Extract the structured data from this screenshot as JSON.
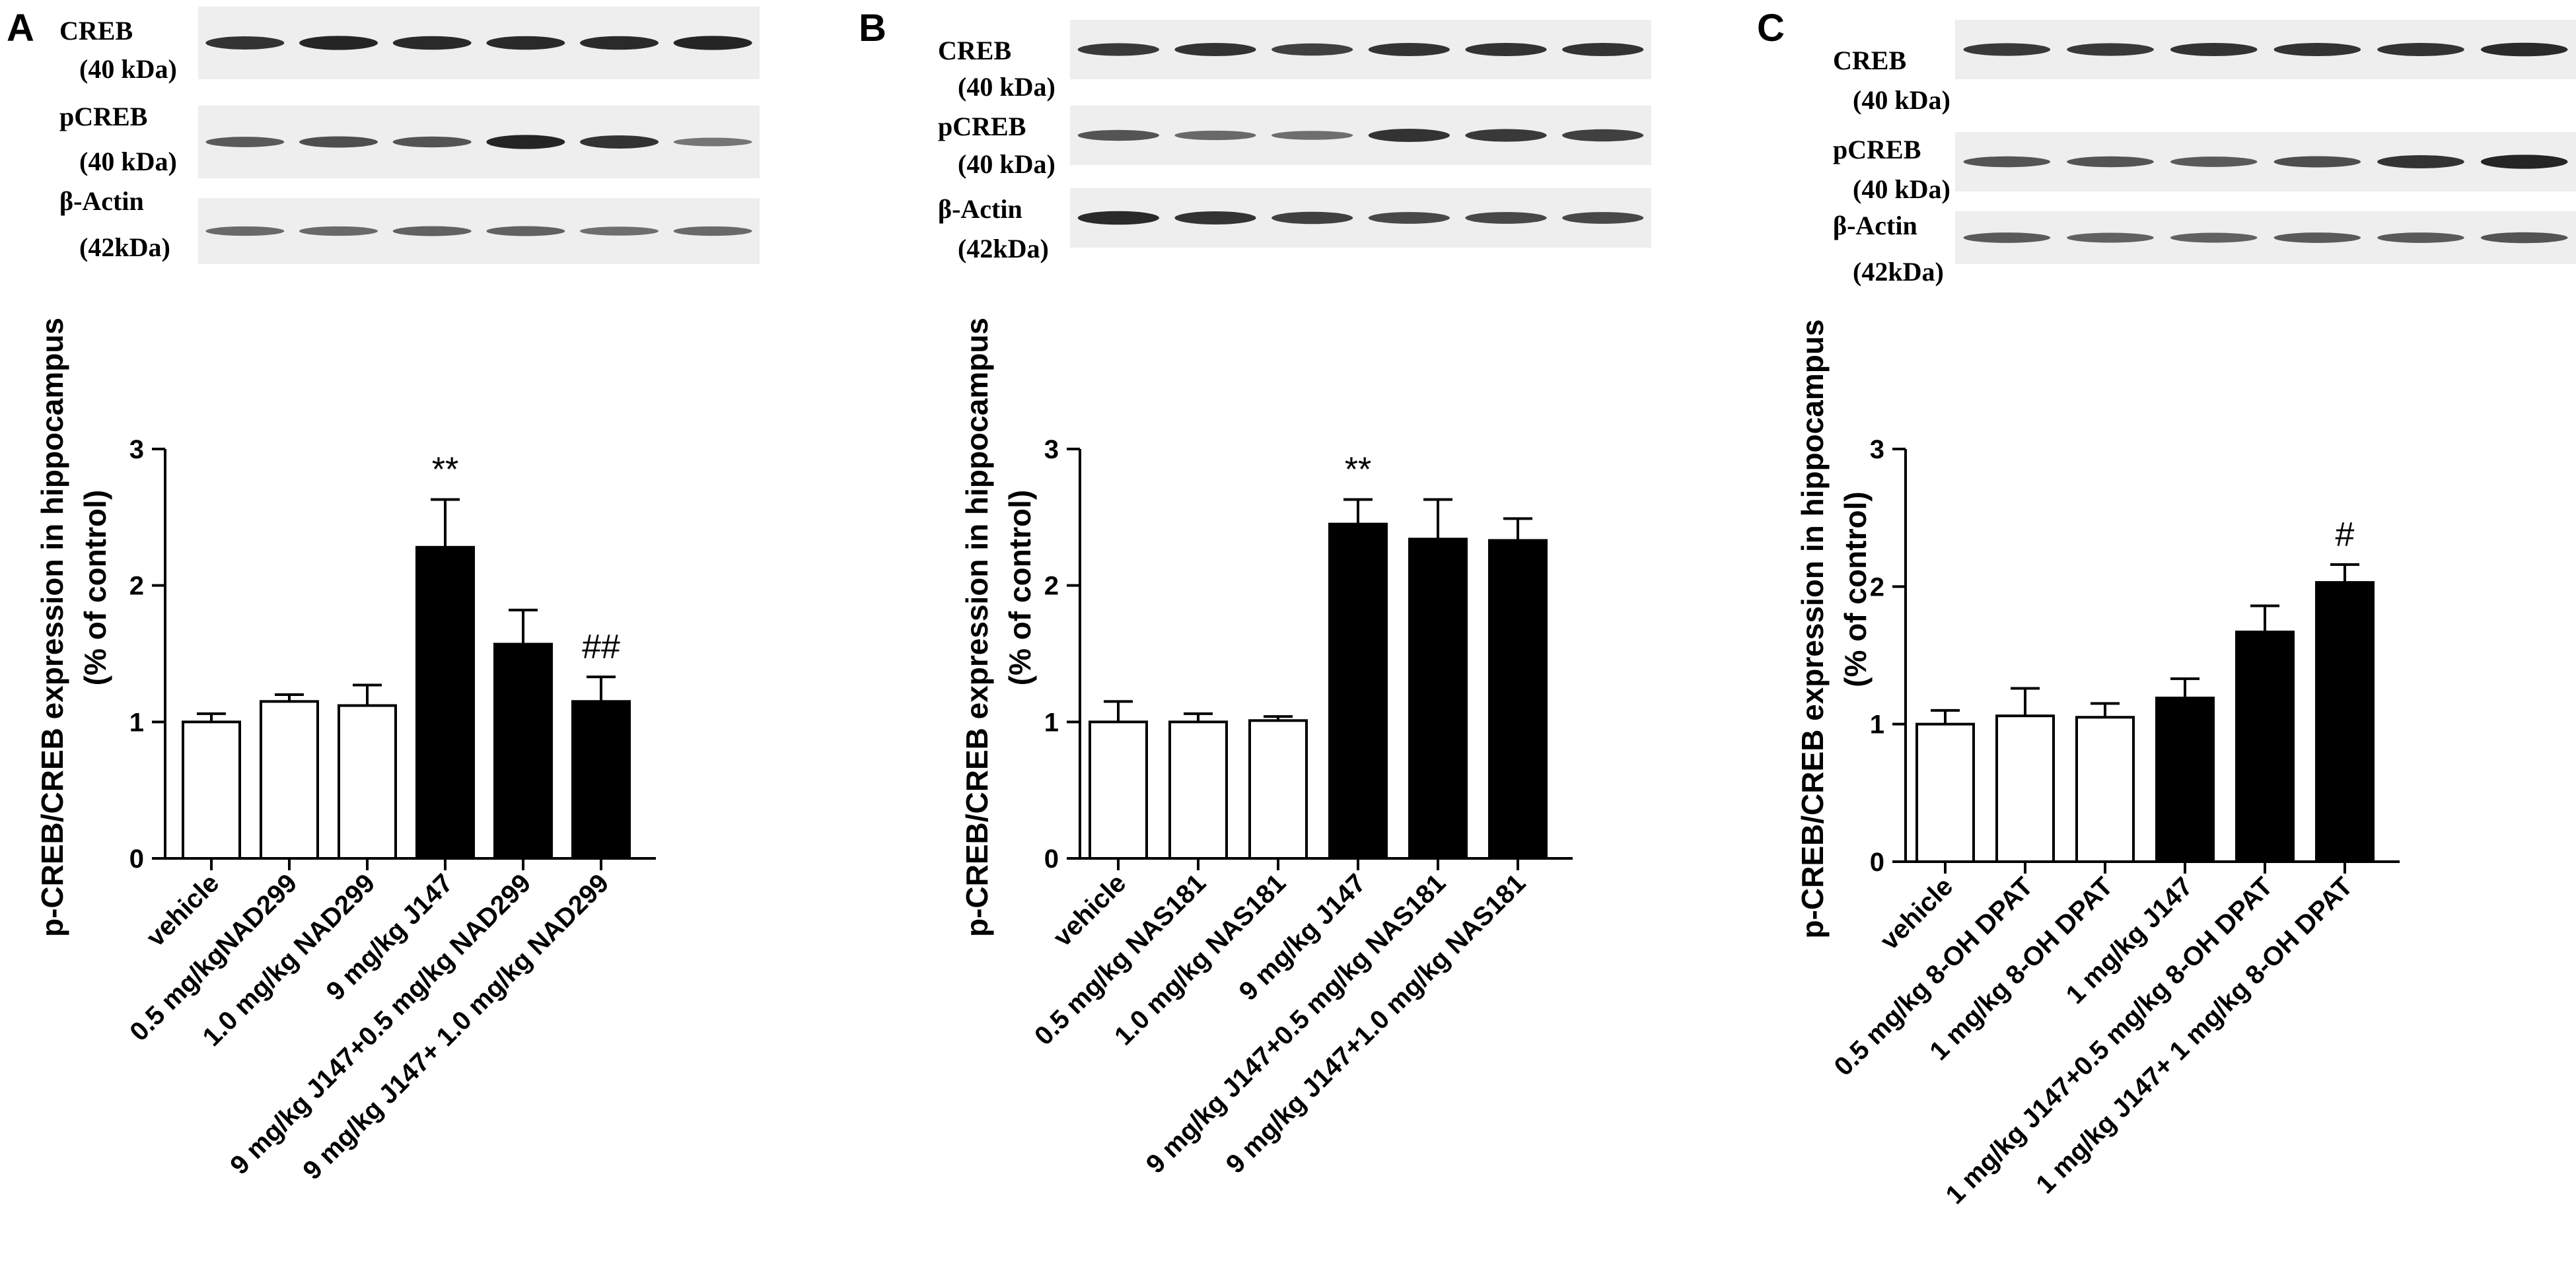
{
  "colors": {
    "black": "#000000",
    "white": "#ffffff",
    "blot_bg": "#eeeeee",
    "band": "#1e1e1e"
  },
  "chart_data": [
    {
      "panel": "A",
      "type": "bar",
      "ylabel": [
        "p-CREB/CREB expression in hippocampus",
        "(% of control)"
      ],
      "ylim": [
        0,
        3
      ],
      "yticks": [
        0,
        1,
        2,
        3
      ],
      "categories": [
        "vehicle",
        "0.5 mg/kgNAD299",
        "1.0 mg/kg NAD299",
        "9 mg/kg J147",
        "9 mg/kg J147+0.5 mg/kg NAD299",
        "9 mg/kg J147+ 1.0 mg/kg NAD299"
      ],
      "values": [
        1.0,
        1.15,
        1.12,
        2.28,
        1.57,
        1.15
      ],
      "errors": [
        0.06,
        0.05,
        0.15,
        0.35,
        0.25,
        0.18
      ],
      "fills": [
        "white",
        "white",
        "white",
        "black",
        "black",
        "black"
      ],
      "annotations": [
        {
          "index": 3,
          "text": "**"
        },
        {
          "index": 5,
          "text": "##"
        }
      ],
      "blots": [
        {
          "name": "CREB",
          "mw": "(40 kDa)",
          "intensity": [
            0.85,
            0.95,
            0.9,
            0.9,
            0.9,
            0.95
          ]
        },
        {
          "name": "pCREB",
          "mw": "(40 kDa)",
          "intensity": [
            0.55,
            0.65,
            0.6,
            0.95,
            0.85,
            0.35
          ]
        },
        {
          "name": "β-Actin",
          "mw": "(42kDa)",
          "intensity": [
            0.45,
            0.45,
            0.5,
            0.5,
            0.4,
            0.45
          ]
        }
      ]
    },
    {
      "panel": "B",
      "type": "bar",
      "ylabel": [
        "p-CREB/CREB expression in hippocampus",
        "(% of control)"
      ],
      "ylim": [
        0,
        3
      ],
      "yticks": [
        0,
        1,
        2,
        3
      ],
      "categories": [
        "vehicle",
        "0.5 mg/kg NAS181",
        "1.0 mg/kg NAS181",
        "9 mg/kg J147",
        "9 mg/kg J147+0.5 mg/kg NAS181",
        "9 mg/kg J147+1.0 mg/kg NAS181"
      ],
      "values": [
        1.0,
        1.0,
        1.01,
        2.45,
        2.34,
        2.33
      ],
      "errors": [
        0.15,
        0.06,
        0.03,
        0.18,
        0.29,
        0.16
      ],
      "fills": [
        "white",
        "white",
        "white",
        "black",
        "black",
        "black"
      ],
      "annotations": [
        {
          "index": 3,
          "text": "**"
        }
      ],
      "blots": [
        {
          "name": "CREB",
          "mw": "(40 kDa)",
          "intensity": [
            0.8,
            0.85,
            0.75,
            0.85,
            0.85,
            0.85
          ]
        },
        {
          "name": "pCREB",
          "mw": "(40 kDa)",
          "intensity": [
            0.6,
            0.45,
            0.4,
            0.85,
            0.8,
            0.75
          ]
        },
        {
          "name": "β-Actin",
          "mw": "(42kDa)",
          "intensity": [
            0.9,
            0.85,
            0.75,
            0.7,
            0.7,
            0.7
          ]
        }
      ]
    },
    {
      "panel": "C",
      "type": "bar",
      "ylabel": [
        "p-CREB/CREB expression in hippocampus",
        "(% of control)"
      ],
      "ylim": [
        0,
        3
      ],
      "yticks": [
        0,
        1,
        2,
        3
      ],
      "categories": [
        "vehicle",
        "0.5 mg/kg 8-OH DPAT",
        "1 mg/kg 8-OH DPAT",
        "1 mg/kg J147",
        "1 mg/kg J147+0.5 mg/kg 8-OH DPAT",
        "1 mg/kg J147+ 1 mg/kg 8-OH DPAT"
      ],
      "values": [
        1.0,
        1.06,
        1.05,
        1.19,
        1.67,
        2.03
      ],
      "errors": [
        0.1,
        0.2,
        0.1,
        0.14,
        0.19,
        0.13
      ],
      "fills": [
        "white",
        "white",
        "white",
        "black",
        "black",
        "black"
      ],
      "annotations": [
        {
          "index": 5,
          "text": "#"
        }
      ],
      "blots": [
        {
          "name": "CREB",
          "mw": "(40 kDa)",
          "intensity": [
            0.8,
            0.8,
            0.85,
            0.85,
            0.85,
            0.9
          ]
        },
        {
          "name": "pCREB",
          "mw": "(40 kDa)",
          "intensity": [
            0.6,
            0.6,
            0.55,
            0.65,
            0.85,
            0.95
          ]
        },
        {
          "name": "β-Actin",
          "mw": "(42kDa)",
          "intensity": [
            0.55,
            0.5,
            0.5,
            0.55,
            0.55,
            0.6
          ]
        }
      ]
    }
  ]
}
